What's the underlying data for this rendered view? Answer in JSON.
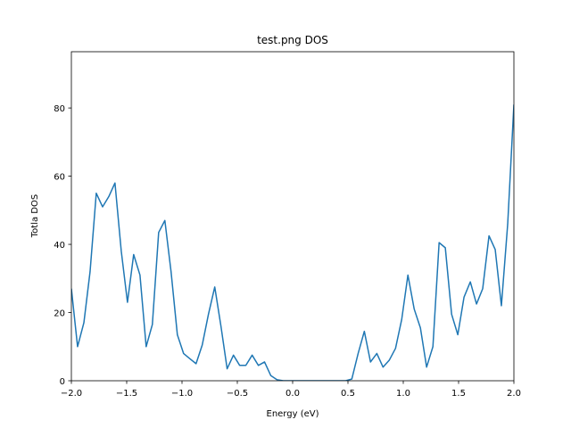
{
  "chart_data": {
    "type": "line",
    "title": "test.png DOS",
    "x_label": "Energy (eV)",
    "y_label": "Totla DOS",
    "x": [
      -2,
      -1.944,
      -1.887,
      -1.831,
      -1.775,
      -1.718,
      -1.662,
      -1.606,
      -1.549,
      -1.493,
      -1.437,
      -1.38,
      -1.324,
      -1.268,
      -1.211,
      -1.155,
      -1.099,
      -1.042,
      -0.986,
      -0.93,
      -0.873,
      -0.817,
      -0.761,
      -0.704,
      -0.648,
      -0.592,
      -0.535,
      -0.479,
      -0.423,
      -0.366,
      -0.31,
      -0.254,
      -0.197,
      -0.141,
      -0.085,
      -0.028,
      0.028,
      0.085,
      0.141,
      0.197,
      0.254,
      0.31,
      0.366,
      0.423,
      0.479,
      0.535,
      0.592,
      0.648,
      0.704,
      0.761,
      0.817,
      0.873,
      0.93,
      0.986,
      1.042,
      1.099,
      1.155,
      1.211,
      1.268,
      1.324,
      1.38,
      1.437,
      1.493,
      1.549,
      1.606,
      1.662,
      1.718,
      1.775,
      1.831,
      1.887,
      1.944,
      2
    ],
    "series": [
      {
        "color": "#1f77b4",
        "values": [
          27,
          10,
          17,
          32,
          55,
          51,
          54,
          58,
          38,
          23,
          37,
          31,
          10,
          16.5,
          43.5,
          47,
          32,
          13.5,
          8,
          6.5,
          5,
          10.5,
          19.5,
          27.5,
          16,
          3.5,
          7.5,
          4.5,
          4.5,
          7.5,
          4.5,
          5.5,
          1.5,
          0.3,
          0,
          0,
          0,
          0,
          0,
          0,
          0,
          0,
          0,
          0,
          0,
          0.5,
          8,
          14.5,
          5.5,
          8,
          4,
          6,
          9.5,
          18,
          31,
          21,
          15.5,
          4,
          10,
          40.5,
          39,
          19.5,
          13.5,
          24.5,
          29,
          22.5,
          27,
          42.5,
          38.5,
          22,
          46,
          81
        ]
      }
    ],
    "xlim": [
      -2,
      2
    ],
    "ylim": [
      0,
      96.5
    ],
    "xticks": [
      {
        "value": -2,
        "label": "−2.0"
      },
      {
        "value": -1.5,
        "label": "−1.5"
      },
      {
        "value": -1,
        "label": "−1.0"
      },
      {
        "value": -0.5,
        "label": "−0.5"
      },
      {
        "value": 0,
        "label": "0.0"
      },
      0.5,
      {
        "value": 1,
        "label": "1.0"
      },
      1.5,
      {
        "value": 2,
        "label": "2.0"
      }
    ],
    "yticks": [
      0,
      20,
      40,
      60,
      80
    ]
  }
}
